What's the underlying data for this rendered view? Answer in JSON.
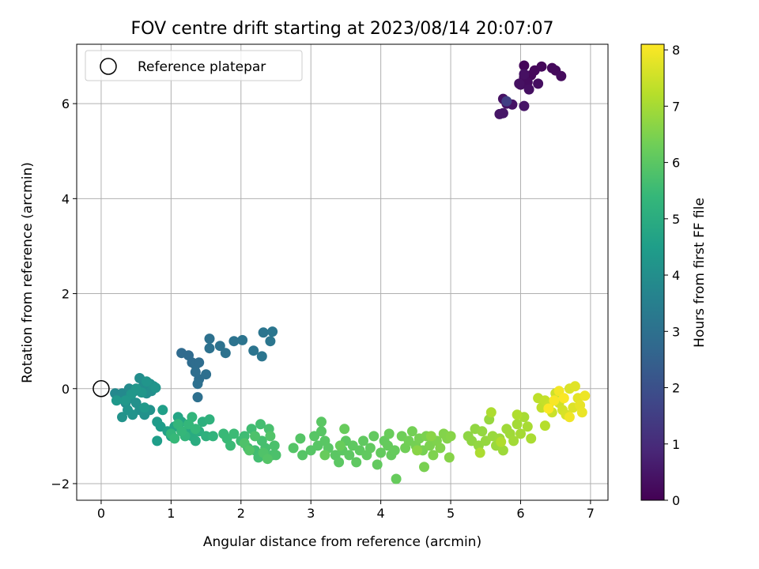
{
  "chart_data": {
    "type": "scatter",
    "title": "FOV centre drift starting at 2023/08/14 20:07:07",
    "xlabel": "Angular distance from reference (arcmin)",
    "ylabel": "Rotation from reference (arcmin)",
    "xlim": [
      -0.35,
      7.25
    ],
    "ylim": [
      -2.35,
      7.25
    ],
    "xticks": [
      0,
      1,
      2,
      3,
      4,
      5,
      6,
      7
    ],
    "yticks": [
      -2,
      0,
      2,
      4,
      6
    ],
    "ytick_labels": [
      "−2",
      "0",
      "2",
      "4",
      "6"
    ],
    "grid": true,
    "legend": {
      "location": "top-left",
      "entries": [
        "Reference platepar"
      ]
    },
    "reference_point": {
      "x": 0,
      "y": 0,
      "style": "hollow-circle"
    },
    "colorbar": {
      "label": "Hours from first FF file",
      "range": [
        0,
        8.1
      ],
      "ticks": [
        0,
        1,
        2,
        3,
        4,
        5,
        6,
        7,
        8
      ],
      "colormap": "viridis",
      "colormap_stops": [
        "#440154",
        "#482878",
        "#3e4989",
        "#31688e",
        "#26828e",
        "#1f9e89",
        "#35b779",
        "#6ece58",
        "#b5de2b",
        "#fde725"
      ]
    },
    "series": [
      {
        "points": [
          [
            6.05,
            6.8,
            0.1
          ],
          [
            6.15,
            6.6,
            0.12
          ],
          [
            6.2,
            6.7,
            0.14
          ],
          [
            6.3,
            6.78,
            0.16
          ],
          [
            6.45,
            6.75,
            0.18
          ],
          [
            6.5,
            6.7,
            0.2
          ],
          [
            6.58,
            6.58,
            0.22
          ],
          [
            6.05,
            6.55,
            0.24
          ],
          [
            6.1,
            6.45,
            0.26
          ],
          [
            6.0,
            6.4,
            0.28
          ],
          [
            6.25,
            6.42,
            0.3
          ],
          [
            6.12,
            6.3,
            0.32
          ],
          [
            6.05,
            6.62,
            0.34
          ],
          [
            5.98,
            6.42,
            0.36
          ],
          [
            5.75,
            6.1,
            0.38
          ],
          [
            5.8,
            6.0,
            0.4
          ],
          [
            5.88,
            5.98,
            0.42
          ],
          [
            6.05,
            5.95,
            0.44
          ],
          [
            5.7,
            5.78,
            0.46
          ],
          [
            5.75,
            5.8,
            0.48
          ],
          [
            5.8,
            6.05,
            1.5
          ],
          [
            1.15,
            0.75,
            2.8
          ],
          [
            1.25,
            0.7,
            2.82
          ],
          [
            1.3,
            0.55,
            2.84
          ],
          [
            1.35,
            0.5,
            2.86
          ],
          [
            1.4,
            0.55,
            2.88
          ],
          [
            1.35,
            0.35,
            2.9
          ],
          [
            1.4,
            0.2,
            2.92
          ],
          [
            1.5,
            0.3,
            2.94
          ],
          [
            1.38,
            0.1,
            2.96
          ],
          [
            1.38,
            -0.18,
            2.98
          ],
          [
            1.55,
            0.85,
            3.0
          ],
          [
            1.55,
            1.05,
            3.02
          ],
          [
            1.7,
            0.9,
            3.04
          ],
          [
            1.78,
            0.75,
            3.06
          ],
          [
            1.9,
            1.0,
            3.08
          ],
          [
            2.02,
            1.02,
            3.1
          ],
          [
            2.18,
            0.8,
            3.12
          ],
          [
            2.3,
            0.68,
            3.14
          ],
          [
            2.32,
            1.18,
            3.16
          ],
          [
            2.45,
            1.2,
            3.18
          ],
          [
            2.42,
            1.0,
            3.2
          ],
          [
            0.2,
            -0.1,
            3.8
          ],
          [
            0.25,
            -0.2,
            3.82
          ],
          [
            0.3,
            -0.1,
            3.84
          ],
          [
            0.35,
            -0.3,
            3.86
          ],
          [
            0.4,
            0.0,
            3.88
          ],
          [
            0.42,
            -0.2,
            3.9
          ],
          [
            0.48,
            -0.05,
            3.92
          ],
          [
            0.55,
            0.22,
            3.94
          ],
          [
            0.6,
            0.05,
            3.96
          ],
          [
            0.65,
            -0.1,
            3.98
          ],
          [
            0.7,
            0.1,
            4.0
          ],
          [
            0.72,
            -0.05,
            4.02
          ],
          [
            0.5,
            -0.3,
            4.04
          ],
          [
            0.55,
            -0.45,
            4.06
          ],
          [
            0.62,
            -0.55,
            4.08
          ],
          [
            0.7,
            -0.45,
            4.1
          ],
          [
            0.75,
            0.05,
            4.12
          ],
          [
            0.3,
            -0.6,
            4.14
          ],
          [
            0.45,
            -0.55,
            4.16
          ],
          [
            0.38,
            -0.45,
            4.18
          ],
          [
            0.78,
            0.02,
            4.2
          ],
          [
            0.65,
            0.15,
            4.22
          ],
          [
            0.58,
            -0.08,
            4.24
          ],
          [
            0.43,
            -0.12,
            4.26
          ],
          [
            0.5,
            0.0,
            4.28
          ],
          [
            0.35,
            -0.25,
            4.3
          ],
          [
            0.22,
            -0.25,
            4.32
          ],
          [
            0.62,
            -0.4,
            4.34
          ],
          [
            0.8,
            -0.7,
            4.4
          ],
          [
            0.85,
            -0.8,
            4.45
          ],
          [
            0.8,
            -1.1,
            4.5
          ],
          [
            0.88,
            -0.45,
            4.55
          ],
          [
            0.95,
            -0.9,
            4.6
          ],
          [
            1.0,
            -1.0,
            4.65
          ],
          [
            1.05,
            -0.8,
            4.7
          ],
          [
            1.1,
            -0.6,
            4.75
          ],
          [
            1.15,
            -0.7,
            4.8
          ],
          [
            1.2,
            -0.95,
            4.85
          ],
          [
            1.25,
            -0.85,
            4.9
          ],
          [
            1.3,
            -1.0,
            4.95
          ],
          [
            1.35,
            -1.1,
            5.0
          ],
          [
            1.4,
            -0.9,
            5.05
          ],
          [
            1.45,
            -0.7,
            5.1
          ],
          [
            1.5,
            -1.0,
            5.15
          ],
          [
            1.55,
            -0.65,
            5.2
          ],
          [
            1.6,
            -1.0,
            5.25
          ],
          [
            1.3,
            -0.6,
            5.28
          ],
          [
            1.2,
            -1.0,
            5.3
          ],
          [
            1.0,
            -0.95,
            5.32
          ],
          [
            1.1,
            -0.75,
            5.34
          ],
          [
            1.25,
            -0.75,
            5.36
          ],
          [
            1.15,
            -0.9,
            5.38
          ],
          [
            1.35,
            -0.85,
            5.4
          ],
          [
            1.05,
            -1.05,
            5.42
          ],
          [
            1.75,
            -0.95,
            5.45
          ],
          [
            1.8,
            -1.05,
            5.47
          ],
          [
            1.85,
            -1.2,
            5.49
          ],
          [
            1.9,
            -0.95,
            5.51
          ],
          [
            2.0,
            -1.1,
            5.53
          ],
          [
            2.05,
            -1.0,
            5.55
          ],
          [
            2.1,
            -1.25,
            5.57
          ],
          [
            2.15,
            -0.85,
            5.59
          ],
          [
            2.2,
            -1.3,
            5.61
          ],
          [
            2.25,
            -1.45,
            5.63
          ],
          [
            2.28,
            -0.75,
            5.65
          ],
          [
            2.3,
            -1.1,
            5.67
          ],
          [
            2.35,
            -1.25,
            5.69
          ],
          [
            2.4,
            -0.85,
            5.71
          ],
          [
            2.45,
            -1.4,
            5.73
          ],
          [
            2.48,
            -1.2,
            5.75
          ],
          [
            2.5,
            -1.4,
            5.77
          ],
          [
            2.2,
            -1.0,
            5.79
          ],
          [
            2.05,
            -1.15,
            5.81
          ],
          [
            2.32,
            -1.35,
            5.83
          ],
          [
            2.42,
            -1.0,
            5.85
          ],
          [
            2.12,
            -1.3,
            5.87
          ],
          [
            2.38,
            -1.48,
            5.89
          ],
          [
            2.75,
            -1.25,
            5.9
          ],
          [
            2.85,
            -1.05,
            5.91
          ],
          [
            2.88,
            -1.4,
            5.92
          ],
          [
            3.0,
            -1.3,
            5.93
          ],
          [
            3.05,
            -1.0,
            5.94
          ],
          [
            3.1,
            -1.2,
            5.95
          ],
          [
            3.15,
            -0.9,
            5.96
          ],
          [
            3.2,
            -1.1,
            5.97
          ],
          [
            3.25,
            -1.25,
            5.98
          ],
          [
            3.15,
            -0.7,
            5.99
          ],
          [
            3.35,
            -1.4,
            6.0
          ],
          [
            3.4,
            -1.55,
            6.01
          ],
          [
            3.45,
            -1.3,
            6.02
          ],
          [
            3.5,
            -1.1,
            6.03
          ],
          [
            3.55,
            -1.4,
            6.04
          ],
          [
            3.6,
            -1.2,
            6.05
          ],
          [
            3.65,
            -1.55,
            6.06
          ],
          [
            3.7,
            -1.3,
            6.07
          ],
          [
            3.75,
            -1.1,
            6.08
          ],
          [
            3.8,
            -1.4,
            6.09
          ],
          [
            3.85,
            -1.25,
            6.1
          ],
          [
            3.9,
            -1.0,
            6.11
          ],
          [
            3.95,
            -1.6,
            6.12
          ],
          [
            4.0,
            -1.35,
            6.13
          ],
          [
            4.05,
            -1.1,
            6.14
          ],
          [
            4.1,
            -1.2,
            6.15
          ],
          [
            4.15,
            -1.4,
            6.16
          ],
          [
            4.2,
            -1.3,
            6.17
          ],
          [
            4.22,
            -1.9,
            6.18
          ],
          [
            3.48,
            -0.85,
            6.19
          ],
          [
            3.2,
            -1.4,
            6.2
          ],
          [
            3.42,
            -1.2,
            6.21
          ],
          [
            4.12,
            -0.95,
            6.22
          ],
          [
            4.3,
            -1.0,
            6.3
          ],
          [
            4.35,
            -1.25,
            6.32
          ],
          [
            4.4,
            -1.1,
            6.34
          ],
          [
            4.45,
            -0.9,
            6.36
          ],
          [
            4.5,
            -1.2,
            6.38
          ],
          [
            4.55,
            -1.05,
            6.4
          ],
          [
            4.6,
            -1.3,
            6.42
          ],
          [
            4.62,
            -1.65,
            6.44
          ],
          [
            4.65,
            -1.0,
            6.46
          ],
          [
            4.7,
            -1.2,
            6.48
          ],
          [
            4.75,
            -1.4,
            6.5
          ],
          [
            4.8,
            -1.1,
            6.52
          ],
          [
            4.85,
            -1.25,
            6.54
          ],
          [
            4.9,
            -0.95,
            6.56
          ],
          [
            4.95,
            -1.05,
            6.58
          ],
          [
            4.98,
            -1.45,
            6.6
          ],
          [
            5.0,
            -1.0,
            6.62
          ],
          [
            4.52,
            -1.3,
            6.64
          ],
          [
            4.72,
            -1.0,
            6.66
          ],
          [
            5.25,
            -1.0,
            6.7
          ],
          [
            5.3,
            -1.1,
            6.72
          ],
          [
            5.35,
            -0.85,
            6.74
          ],
          [
            5.4,
            -1.2,
            6.76
          ],
          [
            5.45,
            -0.9,
            6.78
          ],
          [
            5.5,
            -1.1,
            6.8
          ],
          [
            5.55,
            -0.65,
            6.82
          ],
          [
            5.6,
            -1.0,
            6.84
          ],
          [
            5.65,
            -1.2,
            6.86
          ],
          [
            5.7,
            -1.05,
            6.88
          ],
          [
            5.75,
            -1.3,
            6.9
          ],
          [
            5.8,
            -0.85,
            6.92
          ],
          [
            5.85,
            -0.95,
            6.94
          ],
          [
            5.9,
            -1.1,
            6.96
          ],
          [
            5.95,
            -0.75,
            6.98
          ],
          [
            6.0,
            -0.95,
            7.0
          ],
          [
            6.05,
            -0.6,
            7.02
          ],
          [
            6.1,
            -0.8,
            7.04
          ],
          [
            6.15,
            -1.05,
            7.06
          ],
          [
            5.42,
            -1.35,
            7.08
          ],
          [
            5.58,
            -0.5,
            7.1
          ],
          [
            5.95,
            -0.55,
            7.12
          ],
          [
            5.72,
            -1.12,
            7.14
          ],
          [
            6.25,
            -0.2,
            7.3
          ],
          [
            6.3,
            -0.4,
            7.34
          ],
          [
            6.35,
            -0.25,
            7.38
          ],
          [
            6.4,
            -0.35,
            7.42
          ],
          [
            6.45,
            -0.5,
            7.46
          ],
          [
            6.5,
            -0.1,
            7.5
          ],
          [
            6.55,
            -0.3,
            7.54
          ],
          [
            6.6,
            -0.45,
            7.58
          ],
          [
            6.65,
            -0.55,
            7.62
          ],
          [
            6.7,
            0.0,
            7.66
          ],
          [
            6.75,
            -0.4,
            7.7
          ],
          [
            6.78,
            0.05,
            7.74
          ],
          [
            6.82,
            -0.2,
            7.78
          ],
          [
            6.85,
            -0.35,
            7.82
          ],
          [
            6.88,
            -0.5,
            7.86
          ],
          [
            6.92,
            -0.15,
            7.9
          ],
          [
            6.7,
            -0.6,
            7.94
          ],
          [
            6.55,
            -0.05,
            7.98
          ],
          [
            6.48,
            -0.25,
            8.02
          ],
          [
            6.62,
            -0.2,
            8.06
          ],
          [
            6.4,
            -0.42,
            8.08
          ],
          [
            6.35,
            -0.78,
            7.2
          ]
        ]
      }
    ]
  }
}
